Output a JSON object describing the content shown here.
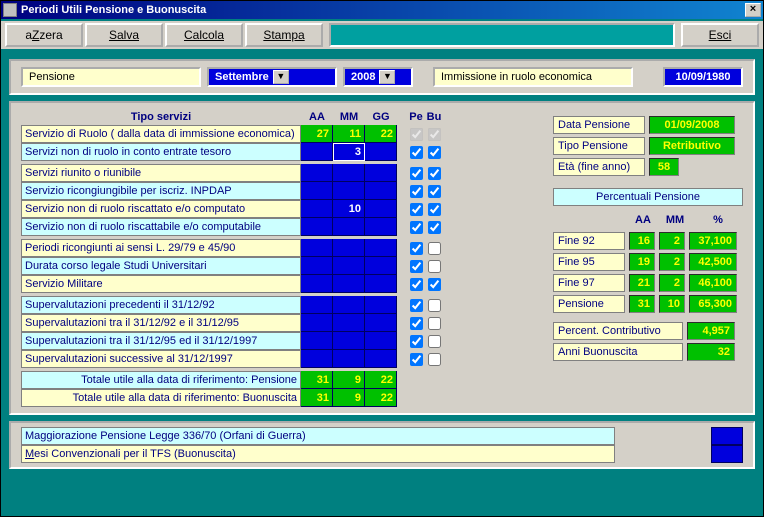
{
  "window": {
    "title": "Periodi Utili Pensione e Buonuscita"
  },
  "toolbar": {
    "azzera": "aZzera",
    "salva": "Salva",
    "calcola": "Calcola",
    "stampa": "Stampa",
    "esci": "Esci"
  },
  "header": {
    "pensione_label": "Pensione",
    "mese": "Settembre",
    "anno": "2008",
    "immissione_label": "Immissione in ruolo economica",
    "immissione_data": "10/09/1980"
  },
  "columns": {
    "tipo": "Tipo  servizi",
    "aa": "AA",
    "mm": "MM",
    "gg": "GG",
    "pe": "Pe",
    "bu": "Bu"
  },
  "services": [
    {
      "label": "Servizio di Ruolo ( dalla data di immissione economica)",
      "bg": "bg-y",
      "aa": "27",
      "mm": "11",
      "gg": "22",
      "green": true,
      "pe": true,
      "bu": true,
      "pe_disabled": true,
      "bu_disabled": true
    },
    {
      "label": "Servizi non di ruolo in conto entrate tesoro",
      "bg": "bg-c",
      "aa": "",
      "mm": "3",
      "gg": "",
      "mm_edit": true,
      "pe": true,
      "bu": true
    },
    {
      "gap": true
    },
    {
      "label": "Servizi riunito o riunibile",
      "bg": "bg-y",
      "aa": "",
      "mm": "",
      "gg": "",
      "pe": true,
      "bu": true
    },
    {
      "label": "Servizio ricongiungibile per iscriz. INPDAP",
      "bg": "bg-c",
      "aa": "",
      "mm": "",
      "gg": "",
      "pe": true,
      "bu": true
    },
    {
      "label": "Servizio non di ruolo riscattato e/o computato",
      "bg": "bg-y",
      "aa": "",
      "mm": "10",
      "gg": "",
      "white": true,
      "pe": true,
      "bu": true
    },
    {
      "label": "Servizio non di ruolo riscattabile e/o computabile",
      "bg": "bg-c",
      "aa": "",
      "mm": "",
      "gg": "",
      "pe": true,
      "bu": true
    },
    {
      "gap": true
    },
    {
      "label": "Periodi ricongiunti ai sensi L. 29/79 e 45/90",
      "bg": "bg-y",
      "aa": "",
      "mm": "",
      "gg": "",
      "pe": true,
      "bu": false
    },
    {
      "label": "Durata corso legale Studi Universitari",
      "bg": "bg-c",
      "aa": "",
      "mm": "",
      "gg": "",
      "pe": true,
      "bu": false
    },
    {
      "label": "Servizio Militare",
      "bg": "bg-y",
      "aa": "",
      "mm": "",
      "gg": "",
      "pe": true,
      "bu": true
    },
    {
      "gap": true
    },
    {
      "label": "Supervalutazioni precedenti  il 31/12/92",
      "bg": "bg-c",
      "aa": "",
      "mm": "",
      "gg": "",
      "pe": true,
      "bu": false
    },
    {
      "label": "Supervalutazioni tra il 31/12/92 e il 31/12/95",
      "bg": "bg-y",
      "aa": "",
      "mm": "",
      "gg": "",
      "pe": true,
      "bu": false
    },
    {
      "label": "Supervalutazioni tra il 31/12/95 ed il 31/12/1997",
      "bg": "bg-c",
      "aa": "",
      "mm": "",
      "gg": "",
      "pe": true,
      "bu": false
    },
    {
      "label": "Supervalutazioni successive al 31/12/1997",
      "bg": "bg-y",
      "aa": "",
      "mm": "",
      "gg": "",
      "pe": true,
      "bu": false
    }
  ],
  "totals": [
    {
      "label": "Totale utile alla data di riferimento:   Pensione",
      "bg": "bg-c",
      "aa": "31",
      "mm": "9",
      "gg": "22"
    },
    {
      "label": "Totale utile  alla data di riferimento:  Buonuscita",
      "bg": "bg-y",
      "aa": "31",
      "mm": "9",
      "gg": "22"
    }
  ],
  "right": {
    "data_pensione_label": "Data Pensione",
    "data_pensione": "01/09/2008",
    "tipo_pensione_label": "Tipo Pensione",
    "tipo_pensione": "Retributivo",
    "eta_label": "Età (fine anno)",
    "eta": "58",
    "percentuali_header": "Percentuali Pensione",
    "cols": {
      "aa": "AA",
      "mm": "MM",
      "pct": "%"
    },
    "rows": [
      {
        "label": "Fine 92",
        "aa": "16",
        "mm": "2",
        "pct": "37,100"
      },
      {
        "label": "Fine 95",
        "aa": "19",
        "mm": "2",
        "pct": "42,500"
      },
      {
        "label": "Fine 97",
        "aa": "21",
        "mm": "2",
        "pct": "46,100"
      },
      {
        "label": "Pensione",
        "aa": "31",
        "mm": "10",
        "pct": "65,300"
      }
    ],
    "percent_contrib_label": "Percent. Contributivo",
    "percent_contrib": "4,957",
    "anni_buon_label": "Anni Buonuscita",
    "anni_buon": "32"
  },
  "footer": {
    "maggiorazione": "Maggiorazione Pensione Legge 336/70 (Orfani di Guerra)",
    "mesi_conv": "Mesi Convenzionali per il TFS (Buonuscita)"
  }
}
